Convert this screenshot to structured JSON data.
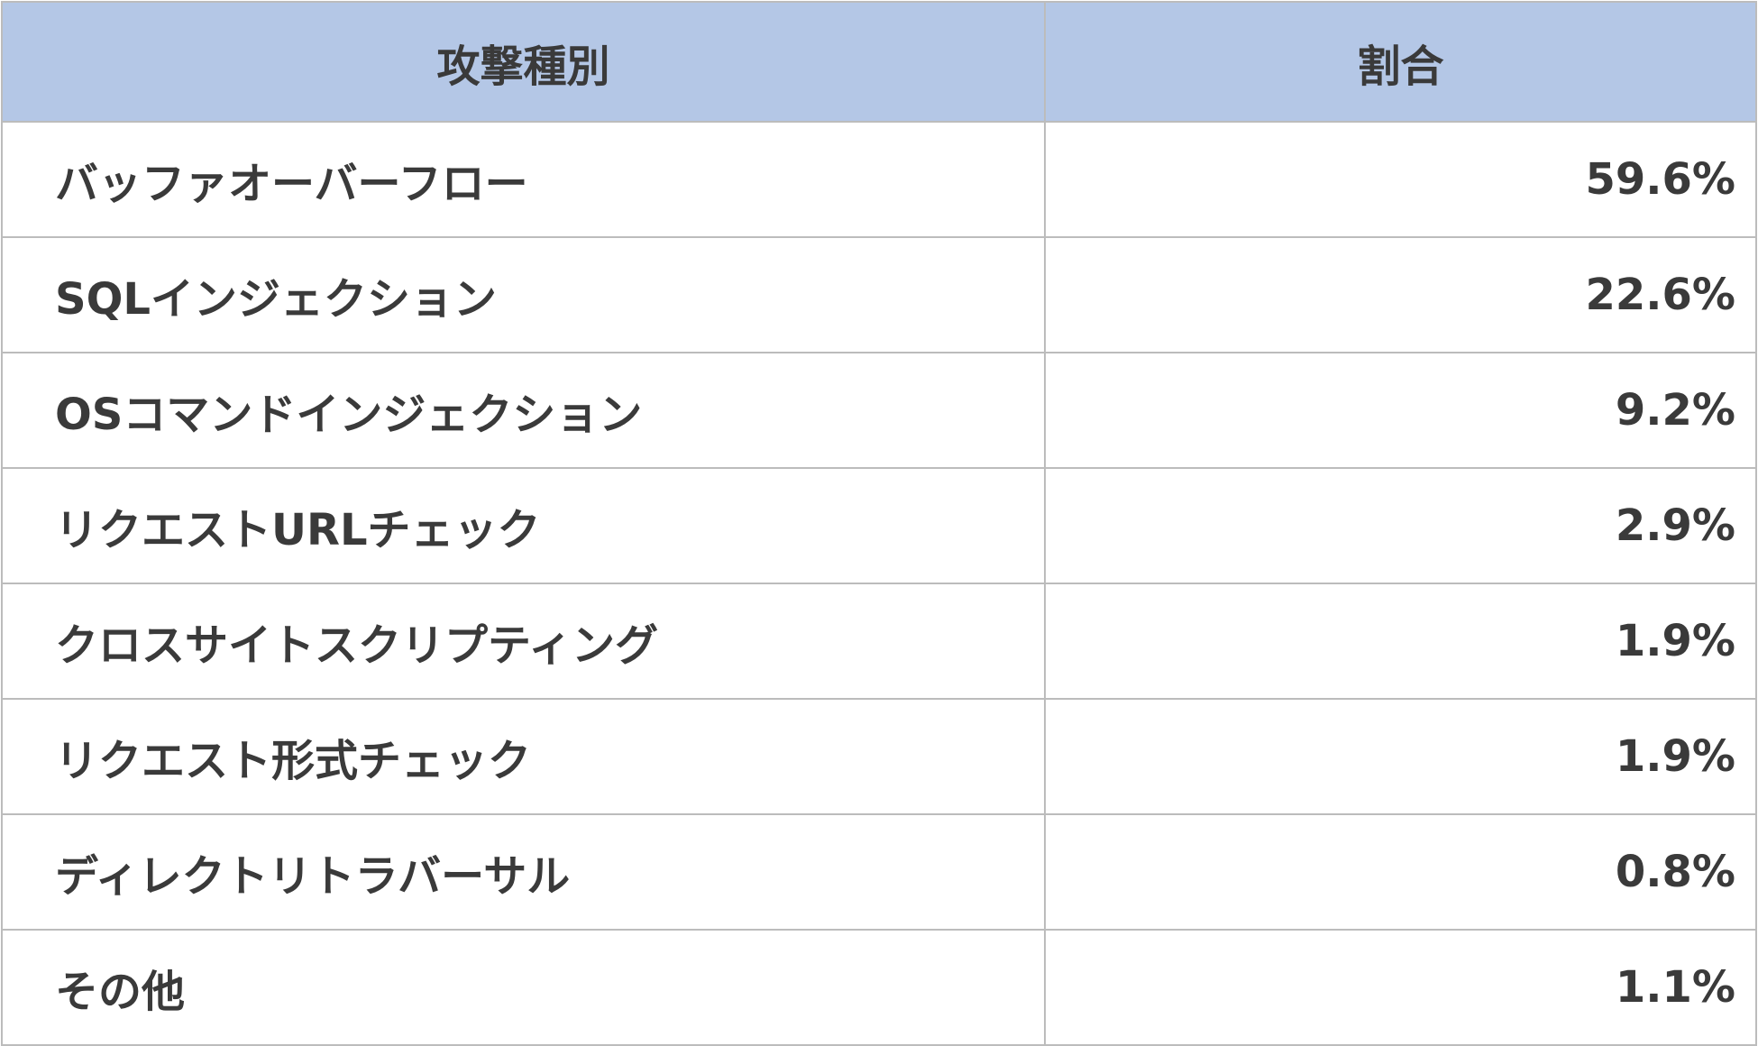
{
  "table": {
    "header_color": "#b4c7e6",
    "columns": [
      "攻撃種別",
      "割合"
    ],
    "rows": [
      {
        "type": "バッファオーバーフロー",
        "ratio": "59.6%"
      },
      {
        "type": "SQLインジェクション",
        "ratio": "22.6%"
      },
      {
        "type": "OSコマンドインジェクション",
        "ratio": "9.2%"
      },
      {
        "type": "リクエストURLチェック",
        "ratio": "2.9%"
      },
      {
        "type": "クロスサイトスクリプティング",
        "ratio": "1.9%"
      },
      {
        "type": "リクエスト形式チェック",
        "ratio": "1.9%"
      },
      {
        "type": "ディレクトリトラバーサル",
        "ratio": "0.8%"
      },
      {
        "type": "その他",
        "ratio": "1.1%"
      }
    ]
  }
}
